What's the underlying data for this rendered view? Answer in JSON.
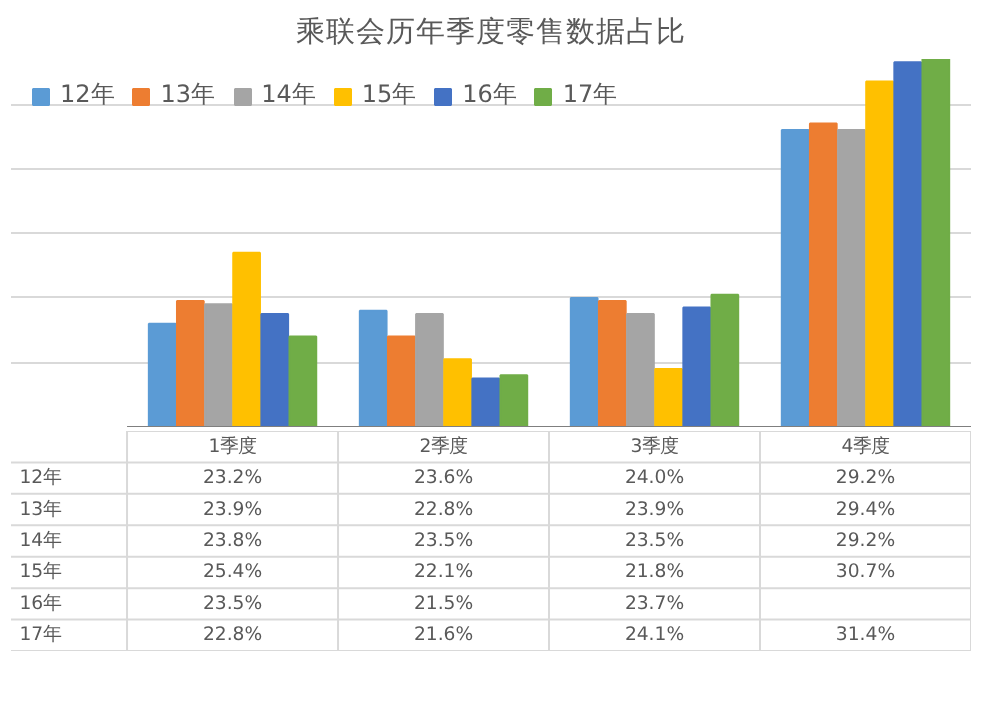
{
  "chart_data": {
    "type": "bar",
    "title": "乘联会历年季度零售数据占比",
    "categories": [
      "1季度",
      "2季度",
      "3季度",
      "4季度"
    ],
    "series": [
      {
        "name": "12年",
        "color": "#5b9bd5",
        "values": [
          23.2,
          23.6,
          24.0,
          29.2
        ],
        "value_labels": [
          "23.2%",
          "23.6%",
          "24.0%",
          "29.2%"
        ]
      },
      {
        "name": "13年",
        "color": "#ed7d31",
        "values": [
          23.9,
          22.8,
          23.9,
          29.4
        ],
        "value_labels": [
          "23.9%",
          "22.8%",
          "23.9%",
          "29.4%"
        ]
      },
      {
        "name": "14年",
        "color": "#a5a5a5",
        "values": [
          23.8,
          23.5,
          23.5,
          29.2
        ],
        "value_labels": [
          "23.8%",
          "23.5%",
          "23.5%",
          "29.2%"
        ]
      },
      {
        "name": "15年",
        "color": "#ffc000",
        "values": [
          25.4,
          22.1,
          21.8,
          30.7
        ],
        "value_labels": [
          "25.4%",
          "22.1%",
          "21.8%",
          "30.7%"
        ]
      },
      {
        "name": "16年",
        "color": "#4472c4",
        "values": [
          23.5,
          21.5,
          23.7,
          31.3
        ],
        "value_labels": [
          "23.5%",
          "21.5%",
          "23.7%",
          null
        ]
      },
      {
        "name": "17年",
        "color": "#70ad47",
        "values": [
          22.8,
          21.6,
          24.1,
          31.4
        ],
        "value_labels": [
          "22.8%",
          "21.6%",
          "24.1%",
          "31.4%"
        ]
      }
    ],
    "ylim": [
      20,
      31.4
    ],
    "yticks": [
      {
        "value": 20,
        "label": null
      },
      {
        "value": 22,
        "label": null
      },
      {
        "value": 24,
        "label": null
      },
      {
        "value": 26,
        "label": null
      },
      {
        "value": 28,
        "label": null
      },
      {
        "value": 30,
        "label": null
      }
    ],
    "tick_labels": false,
    "grid": "y",
    "legend": "top left"
  }
}
